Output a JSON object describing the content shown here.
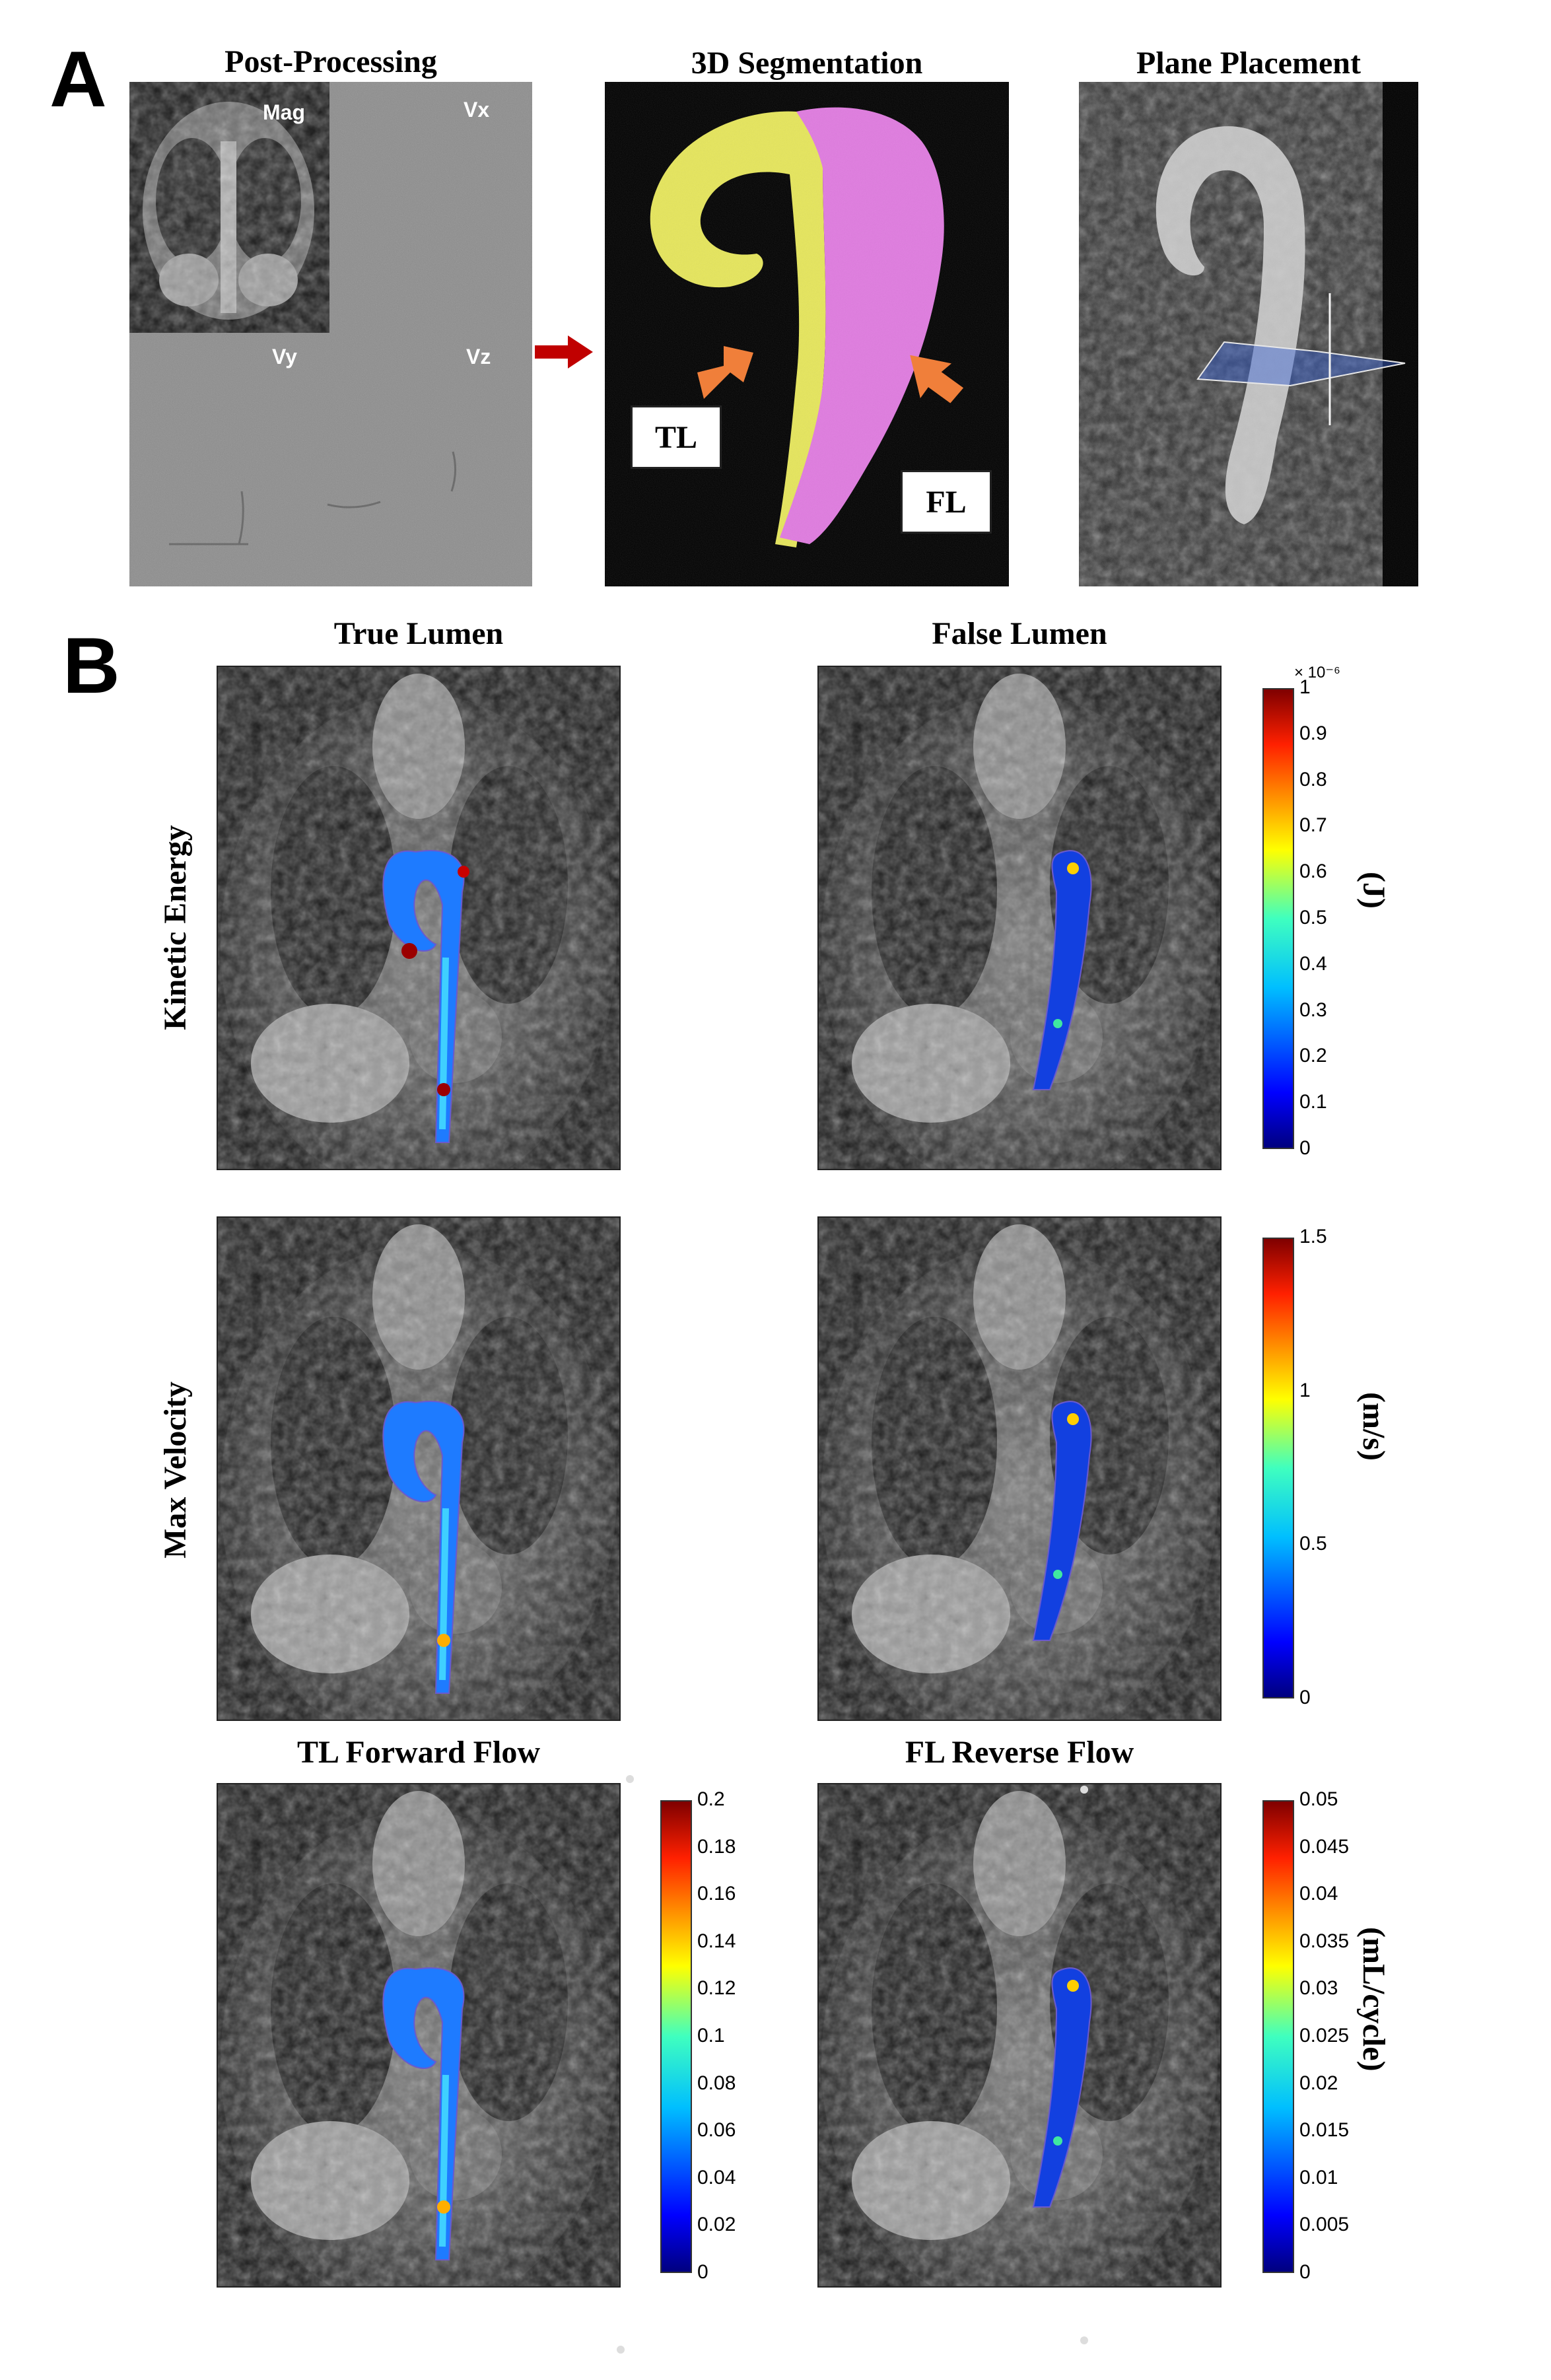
{
  "panel_a": {
    "letter": "A",
    "post_processing": {
      "title": "Post-Processing",
      "labels": [
        "Mag",
        "Vx",
        "Vy",
        "Vz"
      ]
    },
    "segmentation": {
      "title": "3D Segmentation",
      "tl_label": "TL",
      "fl_label": "FL",
      "colors": {
        "true_lumen": "#e6e65a",
        "false_lumen": "#e07ae0",
        "arrow": "#f07f3a"
      }
    },
    "plane": {
      "title": "Plane Placement"
    }
  },
  "panel_b": {
    "letter": "B",
    "col_titles": [
      "True Lumen",
      "False Lumen"
    ],
    "row_labels": [
      "Kinetic Energy",
      "Max Velocity"
    ],
    "flow_titles": [
      "TL Forward Flow",
      "FL Reverse Flow"
    ],
    "colorbars": {
      "ke": {
        "exponent": "× 10⁻⁶",
        "ticks": [
          "1",
          "0.9",
          "0.8",
          "0.7",
          "0.6",
          "0.5",
          "0.4",
          "0.3",
          "0.2",
          "0.1",
          "0"
        ],
        "unit": "(J)"
      },
      "vel": {
        "ticks": [
          "1.5",
          "1",
          "0.5",
          "0"
        ],
        "unit": "(m/s)"
      },
      "tl_flow": {
        "ticks": [
          "0.2",
          "0.18",
          "0.16",
          "0.14",
          "0.12",
          "0.1",
          "0.08",
          "0.06",
          "0.04",
          "0.02",
          "0"
        ]
      },
      "fl_flow": {
        "ticks": [
          "0.05",
          "0.045",
          "0.04",
          "0.035",
          "0.03",
          "0.025",
          "0.02",
          "0.015",
          "0.01",
          "0.005",
          "0"
        ],
        "unit": "(mL/cycle)"
      }
    },
    "jet_colors": [
      "#00007f",
      "#0000ff",
      "#007fff",
      "#00ffff",
      "#7fff7f",
      "#ffff00",
      "#ff7f00",
      "#ff0000",
      "#7f0000"
    ]
  }
}
